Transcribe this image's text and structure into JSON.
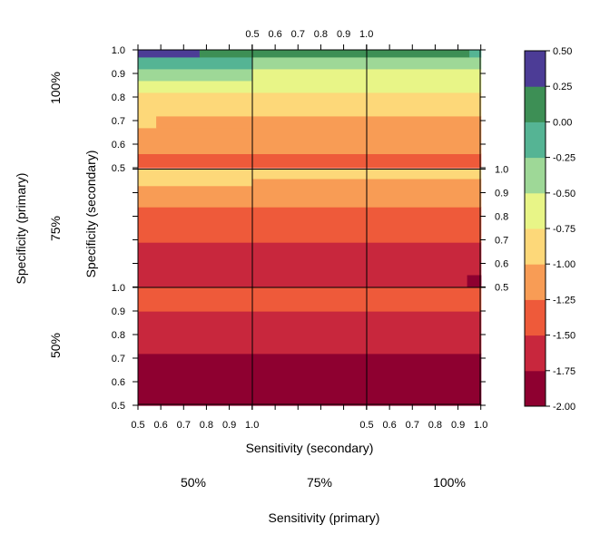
{
  "chart_data": {
    "type": "heatmap",
    "xlabel": "Sensitivity (secondary)",
    "ylabel": "Specificity (secondary)",
    "outer_xlabel": "Sensitivity (primary)",
    "outer_ylabel": "Specificity (primary)",
    "primary_sensitivity": [
      "50%",
      "75%",
      "100%"
    ],
    "primary_specificity": [
      "50%",
      "75%",
      "100%"
    ],
    "secondary_ticks": [
      "0.5",
      "0.6",
      "0.7",
      "0.8",
      "0.9",
      "1.0"
    ],
    "xlim": [
      0.5,
      1.0
    ],
    "ylim": [
      0.5,
      1.0
    ],
    "colorbar": {
      "breaks": [
        -2.0,
        -1.75,
        -1.5,
        -1.25,
        -1.0,
        -0.75,
        -0.5,
        -0.25,
        0.0,
        0.25,
        0.5
      ],
      "labels": [
        "-2.00",
        "-1.75",
        "-1.50",
        "-1.25",
        "-1.00",
        "-0.75",
        "-0.50",
        "-0.25",
        "0.00",
        "0.25",
        "0.50"
      ],
      "colors": [
        "#8E0030",
        "#C8273D",
        "#EE5A3A",
        "#F89C55",
        "#FDD879",
        "#E8F587",
        "#9ED897",
        "#55B494",
        "#3D8F55",
        "#4C3C96"
      ]
    },
    "panels": [
      {
        "spec_primary": "100%",
        "sens_primary": "50%",
        "bands": [
          {
            "y": [
              0.5,
              0.56
            ],
            "x": [
              0.5,
              1.0
            ],
            "level": -1.5
          },
          {
            "y": [
              0.56,
              0.67
            ],
            "x": [
              0.5,
              1.0
            ],
            "level": -1.25
          },
          {
            "y": [
              0.67,
              0.72
            ],
            "x": [
              0.5,
              0.58
            ],
            "level": -1.0
          },
          {
            "y": [
              0.67,
              0.72
            ],
            "x": [
              0.58,
              1.0
            ],
            "level": -1.25
          },
          {
            "y": [
              0.72,
              0.82
            ],
            "x": [
              0.5,
              1.0
            ],
            "level": -1.0
          },
          {
            "y": [
              0.82,
              0.87
            ],
            "x": [
              0.5,
              1.0
            ],
            "level": -0.75
          },
          {
            "y": [
              0.87,
              0.92
            ],
            "x": [
              0.5,
              1.0
            ],
            "level": -0.5
          },
          {
            "y": [
              0.92,
              0.97
            ],
            "x": [
              0.5,
              1.0
            ],
            "level": -0.25
          },
          {
            "y": [
              0.97,
              1.0
            ],
            "x": [
              0.5,
              0.77
            ],
            "level": 0.25
          },
          {
            "y": [
              0.97,
              1.0
            ],
            "x": [
              0.77,
              1.0
            ],
            "level": 0.0
          }
        ]
      },
      {
        "spec_primary": "100%",
        "sens_primary": "75%",
        "bands": [
          {
            "y": [
              0.5,
              0.56
            ],
            "x": [
              0.5,
              1.0
            ],
            "level": -1.5
          },
          {
            "y": [
              0.56,
              0.72
            ],
            "x": [
              0.5,
              1.0
            ],
            "level": -1.25
          },
          {
            "y": [
              0.72,
              0.82
            ],
            "x": [
              0.5,
              1.0
            ],
            "level": -1.0
          },
          {
            "y": [
              0.82,
              0.92
            ],
            "x": [
              0.5,
              1.0
            ],
            "level": -0.75
          },
          {
            "y": [
              0.92,
              0.97
            ],
            "x": [
              0.5,
              1.0
            ],
            "level": -0.5
          },
          {
            "y": [
              0.97,
              1.0
            ],
            "x": [
              0.5,
              1.0
            ],
            "level": 0.0
          }
        ]
      },
      {
        "spec_primary": "100%",
        "sens_primary": "100%",
        "bands": [
          {
            "y": [
              0.5,
              0.56
            ],
            "x": [
              0.5,
              1.0
            ],
            "level": -1.5
          },
          {
            "y": [
              0.56,
              0.72
            ],
            "x": [
              0.5,
              1.0
            ],
            "level": -1.25
          },
          {
            "y": [
              0.72,
              0.82
            ],
            "x": [
              0.5,
              1.0
            ],
            "level": -1.0
          },
          {
            "y": [
              0.82,
              0.92
            ],
            "x": [
              0.5,
              1.0
            ],
            "level": -0.75
          },
          {
            "y": [
              0.92,
              0.97
            ],
            "x": [
              0.5,
              1.0
            ],
            "level": -0.5
          },
          {
            "y": [
              0.97,
              1.0
            ],
            "x": [
              0.5,
              0.95
            ],
            "level": 0.0
          },
          {
            "y": [
              0.97,
              1.0
            ],
            "x": [
              0.95,
              1.0
            ],
            "level": -0.25
          }
        ]
      },
      {
        "spec_primary": "75%",
        "sens_primary": "50%",
        "bands": [
          {
            "y": [
              0.5,
              0.69
            ],
            "x": [
              0.5,
              1.0
            ],
            "level": -1.75
          },
          {
            "y": [
              0.69,
              0.84
            ],
            "x": [
              0.5,
              1.0
            ],
            "level": -1.5
          },
          {
            "y": [
              0.84,
              0.93
            ],
            "x": [
              0.5,
              1.0
            ],
            "level": -1.25
          },
          {
            "y": [
              0.93,
              1.0
            ],
            "x": [
              0.5,
              1.0
            ],
            "level": -1.0
          }
        ]
      },
      {
        "spec_primary": "75%",
        "sens_primary": "75%",
        "bands": [
          {
            "y": [
              0.5,
              0.69
            ],
            "x": [
              0.5,
              1.0
            ],
            "level": -1.75
          },
          {
            "y": [
              0.69,
              0.84
            ],
            "x": [
              0.5,
              1.0
            ],
            "level": -1.5
          },
          {
            "y": [
              0.84,
              0.96
            ],
            "x": [
              0.5,
              1.0
            ],
            "level": -1.25
          },
          {
            "y": [
              0.96,
              1.0
            ],
            "x": [
              0.5,
              1.0
            ],
            "level": -1.0
          }
        ]
      },
      {
        "spec_primary": "75%",
        "sens_primary": "100%",
        "bands": [
          {
            "y": [
              0.5,
              0.69
            ],
            "x": [
              0.5,
              1.0
            ],
            "level": -1.75
          },
          {
            "y": [
              0.5,
              0.55
            ],
            "x": [
              0.94,
              1.0
            ],
            "level": -2.0
          },
          {
            "y": [
              0.69,
              0.84
            ],
            "x": [
              0.5,
              1.0
            ],
            "level": -1.5
          },
          {
            "y": [
              0.84,
              0.96
            ],
            "x": [
              0.5,
              1.0
            ],
            "level": -1.25
          },
          {
            "y": [
              0.96,
              1.0
            ],
            "x": [
              0.5,
              1.0
            ],
            "level": -1.0
          }
        ]
      },
      {
        "spec_primary": "50%",
        "sens_primary": "50%",
        "bands": [
          {
            "y": [
              0.5,
              0.72
            ],
            "x": [
              0.5,
              1.0
            ],
            "level": -2.0
          },
          {
            "y": [
              0.72,
              0.9
            ],
            "x": [
              0.5,
              1.0
            ],
            "level": -1.75
          },
          {
            "y": [
              0.9,
              1.0
            ],
            "x": [
              0.5,
              1.0
            ],
            "level": -1.5
          }
        ]
      },
      {
        "spec_primary": "50%",
        "sens_primary": "75%",
        "bands": [
          {
            "y": [
              0.5,
              0.72
            ],
            "x": [
              0.5,
              1.0
            ],
            "level": -2.0
          },
          {
            "y": [
              0.72,
              0.9
            ],
            "x": [
              0.5,
              1.0
            ],
            "level": -1.75
          },
          {
            "y": [
              0.9,
              1.0
            ],
            "x": [
              0.5,
              1.0
            ],
            "level": -1.5
          }
        ]
      },
      {
        "spec_primary": "50%",
        "sens_primary": "100%",
        "bands": [
          {
            "y": [
              0.5,
              0.72
            ],
            "x": [
              0.5,
              1.0
            ],
            "level": -2.0
          },
          {
            "y": [
              0.72,
              0.9
            ],
            "x": [
              0.5,
              1.0
            ],
            "level": -1.75
          },
          {
            "y": [
              0.9,
              1.0
            ],
            "x": [
              0.5,
              1.0
            ],
            "level": -1.5
          }
        ]
      }
    ]
  }
}
